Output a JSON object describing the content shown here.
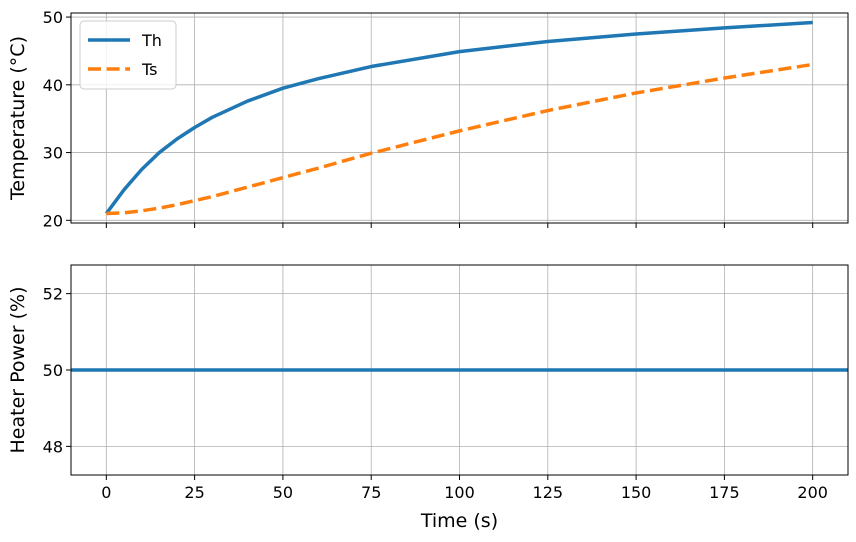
{
  "chart_data": [
    {
      "type": "line",
      "title": "",
      "xlabel": "",
      "ylabel": "Temperature (°C)",
      "xlim": [
        -10,
        210
      ],
      "ylim": [
        19.6,
        50.6
      ],
      "xticks": [
        0,
        25,
        50,
        75,
        100,
        125,
        150,
        175,
        200
      ],
      "yticks": [
        20,
        30,
        40,
        50
      ],
      "ytick_labels": [
        "20",
        "30",
        "40",
        "50"
      ],
      "show_xtick_labels": false,
      "grid": true,
      "legend": "top-left",
      "series": [
        {
          "name": "Th",
          "style": "solid",
          "color": "#1f77b4",
          "x": [
            0,
            5,
            10,
            15,
            20,
            25,
            30,
            40,
            50,
            60,
            75,
            100,
            125,
            150,
            175,
            200
          ],
          "y": [
            21.0,
            24.5,
            27.5,
            30.0,
            32.0,
            33.7,
            35.2,
            37.6,
            39.5,
            40.9,
            42.7,
            44.9,
            46.4,
            47.5,
            48.4,
            49.2
          ]
        },
        {
          "name": "Ts",
          "style": "dashed",
          "color": "#ff7f0e",
          "x": [
            0,
            5,
            10,
            15,
            20,
            25,
            30,
            40,
            50,
            60,
            75,
            100,
            125,
            150,
            175,
            200
          ],
          "y": [
            21.0,
            21.1,
            21.4,
            21.8,
            22.3,
            22.9,
            23.5,
            24.9,
            26.3,
            27.7,
            29.9,
            33.2,
            36.2,
            38.8,
            41.0,
            43.0
          ]
        }
      ]
    },
    {
      "type": "line",
      "title": "",
      "xlabel": "Time (s)",
      "ylabel": "Heater Power (%)",
      "xlim": [
        -10,
        210
      ],
      "ylim": [
        47.25,
        52.75
      ],
      "xticks": [
        0,
        25,
        50,
        75,
        100,
        125,
        150,
        175,
        200
      ],
      "xtick_labels": [
        "0",
        "25",
        "50",
        "75",
        "100",
        "125",
        "150",
        "175",
        "200"
      ],
      "yticks": [
        48,
        50,
        52
      ],
      "ytick_labels": [
        "48",
        "50",
        "52"
      ],
      "show_xtick_labels": true,
      "grid": true,
      "series": [
        {
          "style": "solid",
          "color": "#1f77b4",
          "x": [
            -10,
            210
          ],
          "y": [
            50,
            50
          ]
        }
      ]
    }
  ]
}
